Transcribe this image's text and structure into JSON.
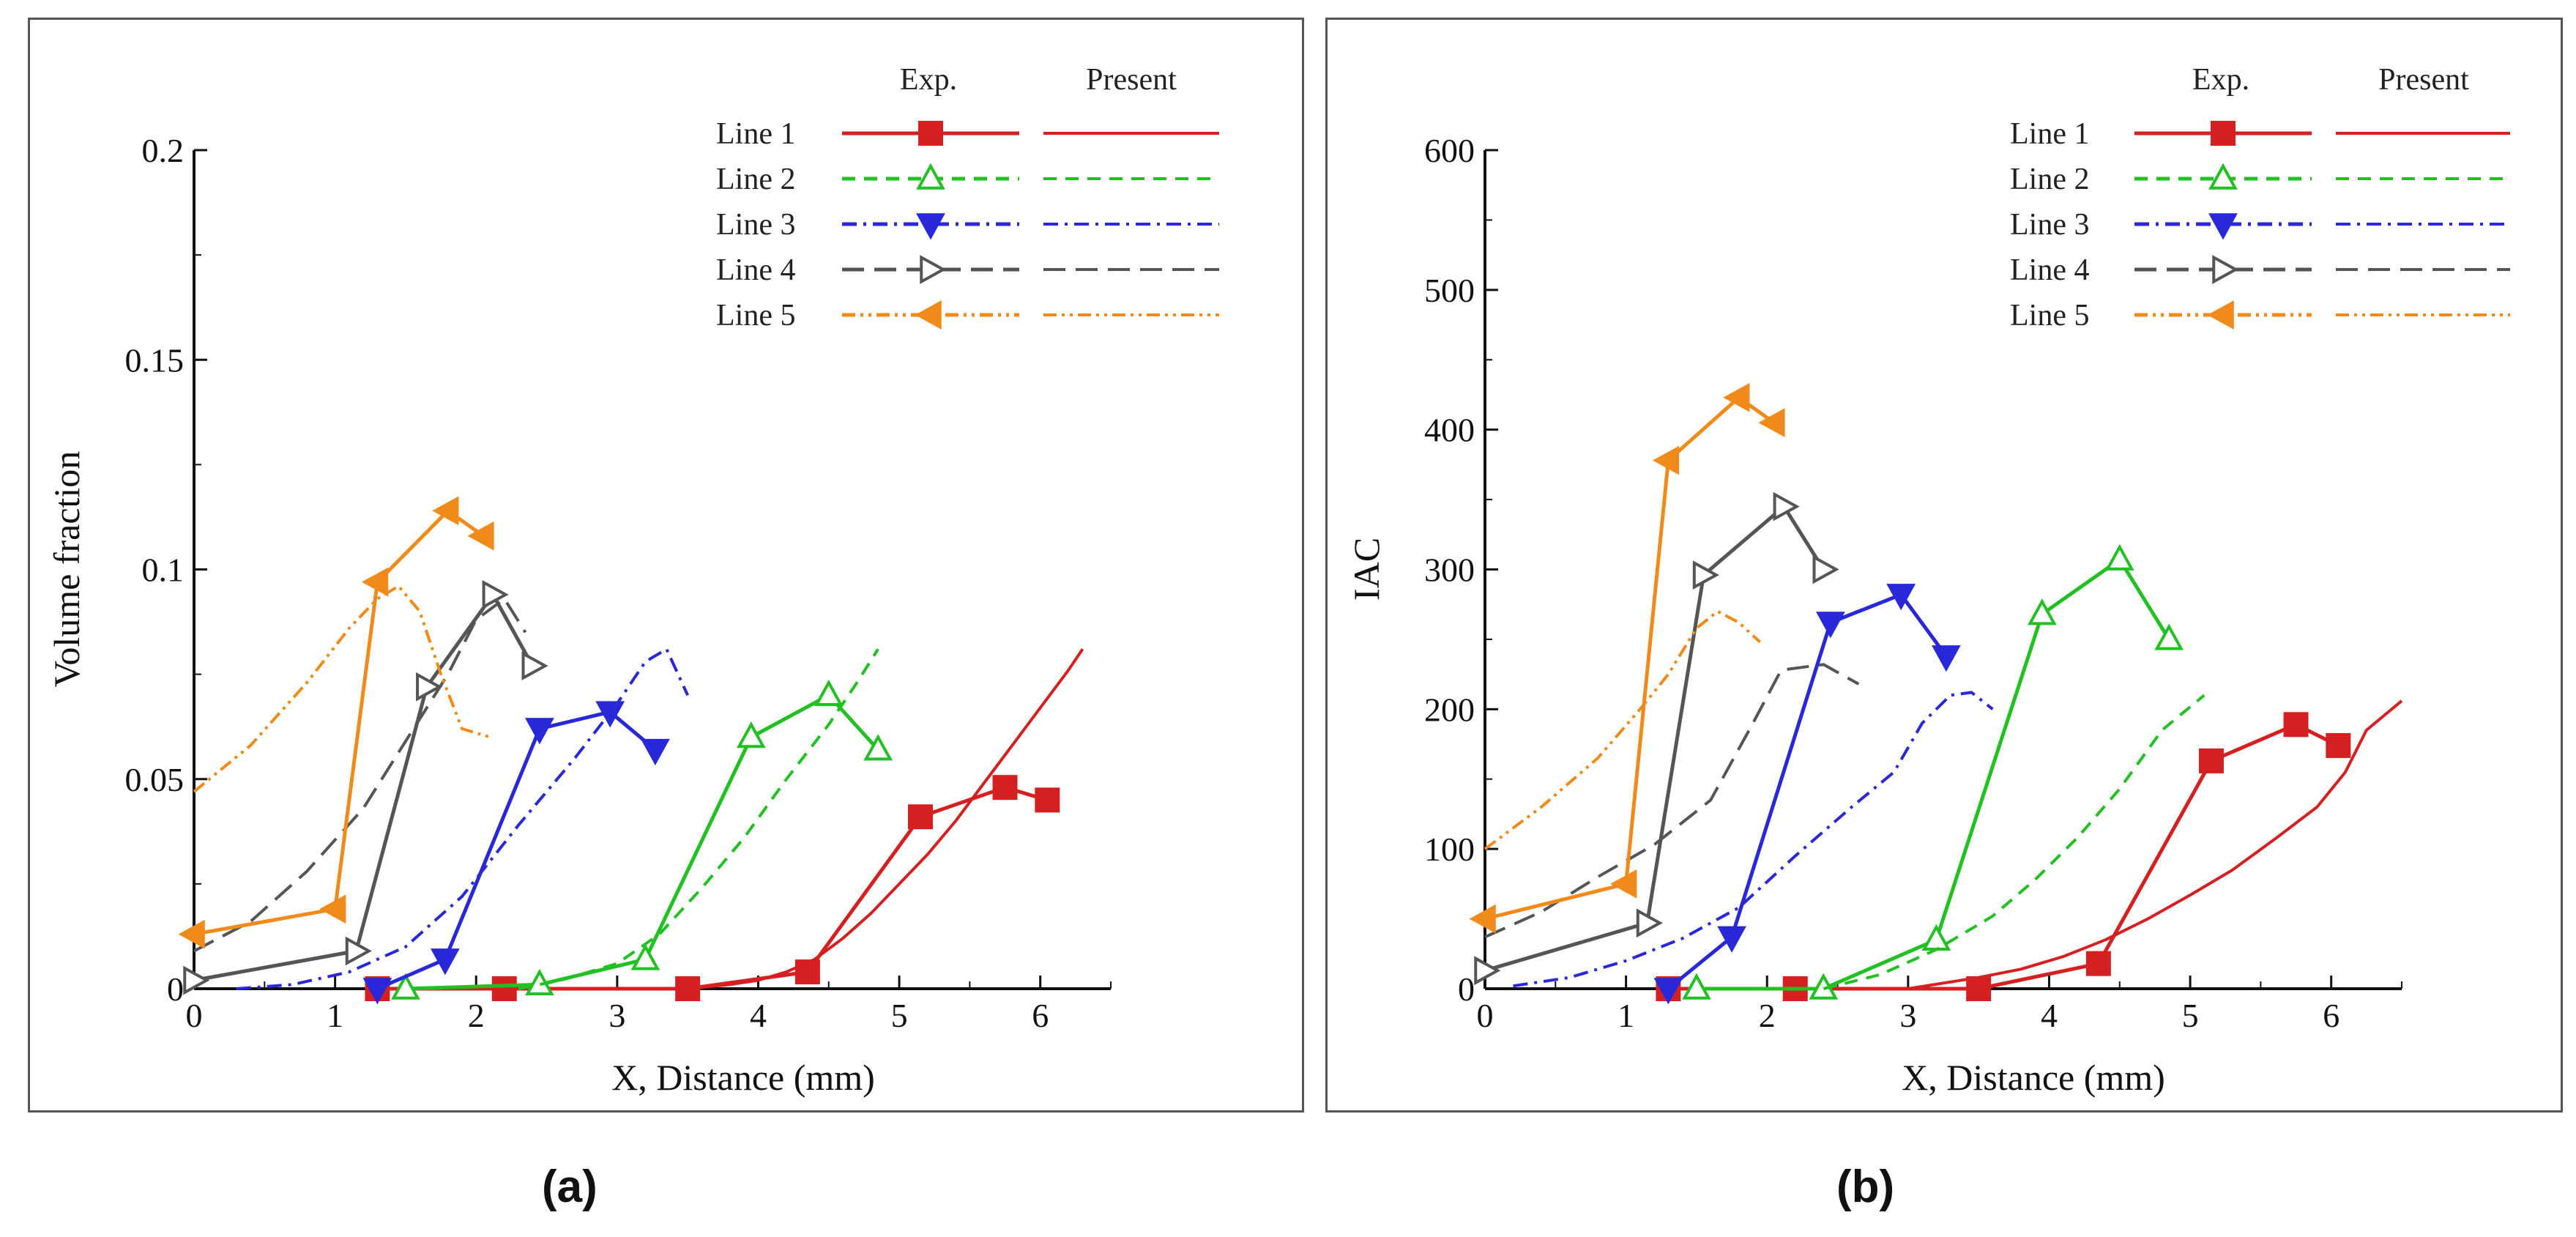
{
  "figure": {
    "panel_labels": [
      "(a)",
      "(b)"
    ]
  },
  "legend": {
    "col_exp": "Exp.",
    "col_present": "Present",
    "entries": [
      {
        "name": "Line 1",
        "color": "#d42020",
        "dash": "solid",
        "marker": "square"
      },
      {
        "name": "Line 2",
        "color": "#22c022",
        "dash": "dash",
        "marker": "triangle-up"
      },
      {
        "name": "Line 3",
        "color": "#2828d8",
        "dash": "dashdot",
        "marker": "triangle-down"
      },
      {
        "name": "Line 4",
        "color": "#555555",
        "dash": "longdash",
        "marker": "triangle-right"
      },
      {
        "name": "Line 5",
        "color": "#f08a1a",
        "dash": "dashdotdot",
        "marker": "triangle-left"
      }
    ]
  },
  "chart_data": [
    {
      "type": "line",
      "panel": "(a)",
      "title": "",
      "xlabel": "X, Distance (mm)",
      "ylabel": "Volume fraction",
      "xlim": [
        0,
        6.5
      ],
      "ylim": [
        0,
        0.2
      ],
      "xticks": [
        0,
        1,
        2,
        3,
        4,
        5,
        6
      ],
      "yticks": [
        0,
        0.05,
        0.1,
        0.15,
        0.2
      ],
      "ytick_labels": [
        "0",
        "0.05",
        "0.1",
        "0.15",
        "0.2"
      ],
      "series": [
        {
          "name": "Line 1",
          "kind": "exp",
          "x": [
            1.3,
            2.2,
            3.5,
            4.35,
            5.15,
            5.75,
            6.05
          ],
          "y": [
            0.0,
            0.0,
            0.0,
            0.004,
            0.041,
            0.048,
            0.045
          ]
        },
        {
          "name": "Line 1",
          "kind": "present",
          "x": [
            3.5,
            3.8,
            4.0,
            4.2,
            4.4,
            4.6,
            4.8,
            5.0,
            5.2,
            5.4,
            5.6,
            5.8,
            6.0,
            6.2,
            6.3
          ],
          "y": [
            0.0,
            0.001,
            0.002,
            0.004,
            0.007,
            0.012,
            0.018,
            0.025,
            0.032,
            0.04,
            0.049,
            0.058,
            0.067,
            0.076,
            0.081
          ]
        },
        {
          "name": "Line 2",
          "kind": "exp",
          "x": [
            1.5,
            2.45,
            3.2,
            3.95,
            4.5,
            4.85
          ],
          "y": [
            0.0,
            0.001,
            0.007,
            0.06,
            0.07,
            0.057
          ]
        },
        {
          "name": "Line 2",
          "kind": "present",
          "x": [
            2.3,
            2.6,
            3.0,
            3.3,
            3.6,
            3.9,
            4.2,
            4.5,
            4.7,
            4.85
          ],
          "y": [
            0.0,
            0.002,
            0.006,
            0.013,
            0.024,
            0.036,
            0.05,
            0.063,
            0.073,
            0.081
          ]
        },
        {
          "name": "Line 3",
          "kind": "exp",
          "x": [
            1.3,
            1.78,
            2.45,
            2.95,
            3.27
          ],
          "y": [
            0.0,
            0.007,
            0.062,
            0.066,
            0.057
          ]
        },
        {
          "name": "Line 3",
          "kind": "present",
          "x": [
            0.3,
            0.7,
            1.1,
            1.5,
            1.9,
            2.3,
            2.7,
            3.0,
            3.2,
            3.35,
            3.5
          ],
          "y": [
            0.0,
            0.001,
            0.004,
            0.01,
            0.022,
            0.039,
            0.055,
            0.068,
            0.078,
            0.081,
            0.07
          ]
        },
        {
          "name": "Line 4",
          "kind": "exp",
          "x": [
            0.0,
            1.15,
            1.65,
            2.12,
            2.4
          ],
          "y": [
            0.002,
            0.009,
            0.072,
            0.094,
            0.077
          ]
        },
        {
          "name": "Line 4",
          "kind": "present",
          "x": [
            0.0,
            0.4,
            0.8,
            1.2,
            1.5,
            1.8,
            2.0,
            2.2,
            2.35
          ],
          "y": [
            0.009,
            0.016,
            0.028,
            0.043,
            0.059,
            0.075,
            0.088,
            0.093,
            0.085
          ]
        },
        {
          "name": "Line 5",
          "kind": "exp",
          "x": [
            0.0,
            1.0,
            1.3,
            1.8,
            2.05
          ],
          "y": [
            0.013,
            0.019,
            0.097,
            0.114,
            0.108
          ]
        },
        {
          "name": "Line 5",
          "kind": "present",
          "x": [
            0.0,
            0.4,
            0.8,
            1.1,
            1.3,
            1.45,
            1.6,
            1.75,
            1.9,
            2.1
          ],
          "y": [
            0.047,
            0.058,
            0.073,
            0.086,
            0.093,
            0.096,
            0.09,
            0.075,
            0.062,
            0.06
          ]
        }
      ]
    },
    {
      "type": "line",
      "panel": "(b)",
      "title": "",
      "xlabel": "X, Distance (mm)",
      "ylabel": "IAC",
      "xlim": [
        0,
        6.5
      ],
      "ylim": [
        0,
        600
      ],
      "xticks": [
        0,
        1,
        2,
        3,
        4,
        5,
        6
      ],
      "yticks": [
        0,
        100,
        200,
        300,
        400,
        500,
        600
      ],
      "ytick_labels": [
        "0",
        "100",
        "200",
        "300",
        "400",
        "500",
        "600"
      ],
      "series": [
        {
          "name": "Line 1",
          "kind": "exp",
          "x": [
            1.3,
            2.2,
            3.5,
            4.35,
            5.15,
            5.75,
            6.05
          ],
          "y": [
            0,
            0,
            0,
            18,
            163,
            189,
            174
          ]
        },
        {
          "name": "Line 1",
          "kind": "present",
          "x": [
            3.0,
            3.5,
            3.8,
            4.1,
            4.4,
            4.7,
            5.0,
            5.3,
            5.6,
            5.9,
            6.1,
            6.25,
            6.5
          ],
          "y": [
            0,
            8,
            14,
            23,
            35,
            50,
            67,
            85,
            107,
            130,
            155,
            185,
            206
          ]
        },
        {
          "name": "Line 2",
          "kind": "exp",
          "x": [
            1.5,
            2.4,
            3.2,
            3.95,
            4.5,
            4.85
          ],
          "y": [
            0,
            0,
            35,
            268,
            307,
            250
          ]
        },
        {
          "name": "Line 2",
          "kind": "present",
          "x": [
            2.4,
            2.8,
            3.2,
            3.6,
            3.9,
            4.2,
            4.5,
            4.8,
            5.1
          ],
          "y": [
            0,
            10,
            28,
            52,
            78,
            108,
            143,
            185,
            210
          ]
        },
        {
          "name": "Line 3",
          "kind": "exp",
          "x": [
            1.3,
            1.75,
            2.45,
            2.95,
            3.27
          ],
          "y": [
            0,
            37,
            262,
            282,
            238
          ]
        },
        {
          "name": "Line 3",
          "kind": "present",
          "x": [
            0.2,
            0.6,
            1.0,
            1.4,
            1.8,
            2.2,
            2.6,
            2.9,
            3.1,
            3.3,
            3.45,
            3.6
          ],
          "y": [
            2,
            8,
            20,
            36,
            58,
            95,
            130,
            155,
            190,
            210,
            212,
            200
          ]
        },
        {
          "name": "Line 4",
          "kind": "exp",
          "x": [
            0.0,
            1.15,
            1.55,
            2.12,
            2.4
          ],
          "y": [
            13,
            47,
            296,
            345,
            300
          ]
        },
        {
          "name": "Line 4",
          "kind": "present",
          "x": [
            0.0,
            0.4,
            0.8,
            1.2,
            1.6,
            1.9,
            2.1,
            2.4,
            2.65
          ],
          "y": [
            37,
            55,
            80,
            103,
            135,
            190,
            228,
            232,
            218
          ]
        },
        {
          "name": "Line 5",
          "kind": "exp",
          "x": [
            0.0,
            1.0,
            1.3,
            1.8,
            2.05
          ],
          "y": [
            50,
            75,
            378,
            423,
            405
          ]
        },
        {
          "name": "Line 5",
          "kind": "present",
          "x": [
            0.0,
            0.4,
            0.8,
            1.1,
            1.3,
            1.5,
            1.65,
            1.8,
            1.95
          ],
          "y": [
            100,
            130,
            165,
            200,
            225,
            258,
            270,
            262,
            248
          ]
        }
      ]
    }
  ]
}
